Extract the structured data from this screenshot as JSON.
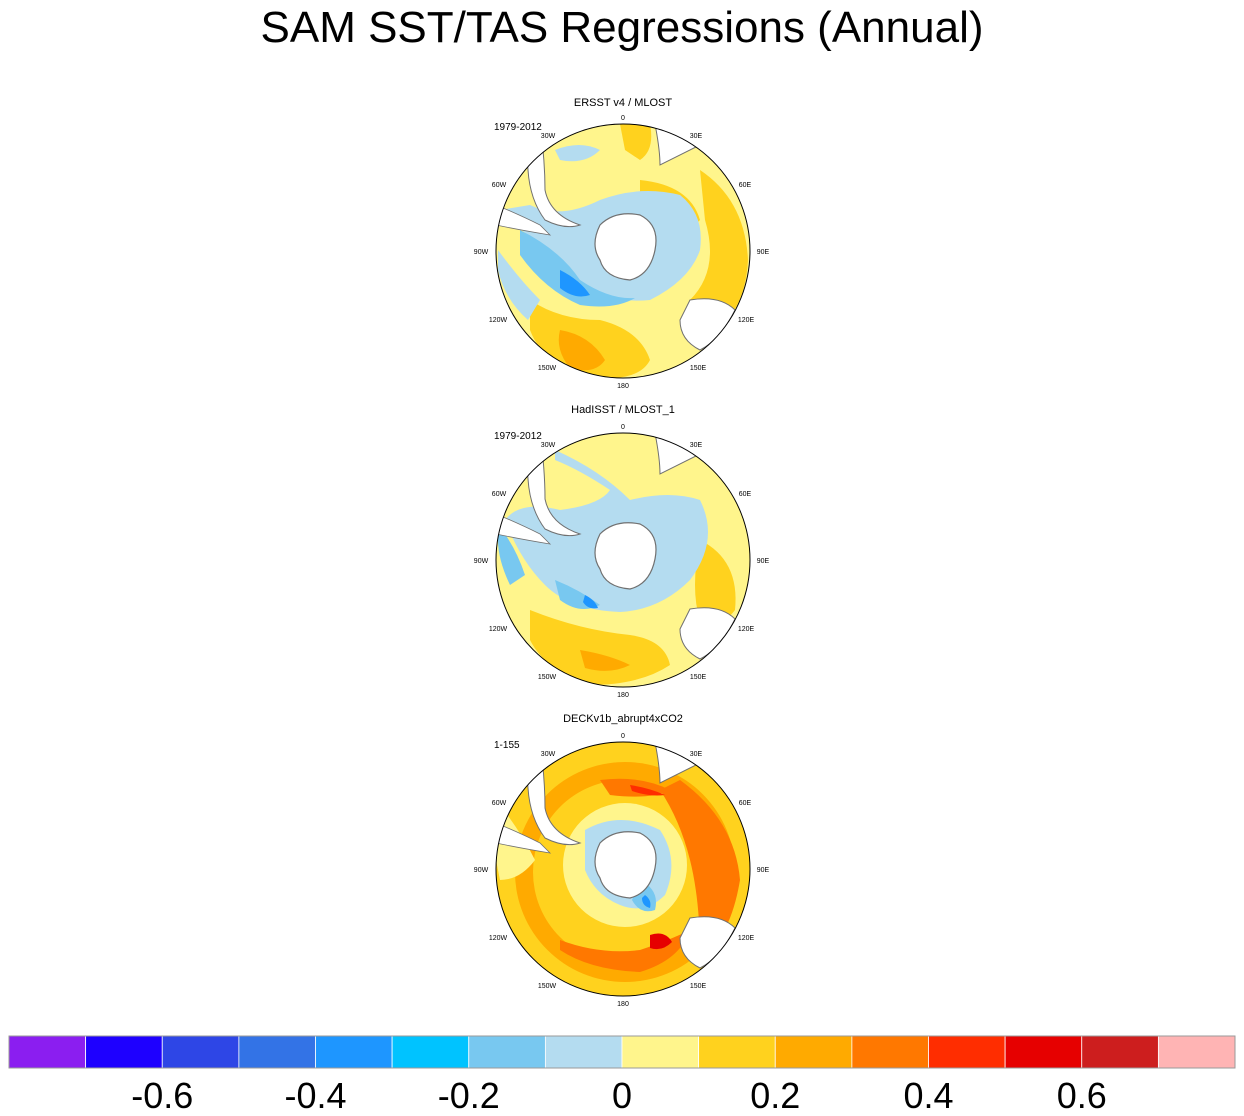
{
  "title": "SAM SST/TAS Regressions (Annual)",
  "chart_data": {
    "type": "polar-contour-map",
    "projection": "south-polar-stereographic",
    "panels": [
      {
        "title": "ERSST v4 / MLOST",
        "period": "1979-2012",
        "dominant_pattern": "warm Pacific/Atlantic mid-latitudes, cool ring near 50-60S with minimum near 100W"
      },
      {
        "title": "HadISST / MLOST_1",
        "period": "1979-2012",
        "dominant_pattern": "weak, patchy; slight cooling south of 50S, weak warming elsewhere"
      },
      {
        "title": "DECKv1b_abrupt4xCO2",
        "period": "1-155",
        "dominant_pattern": "strong warming ring at 40-55S peaking south of Australia/New Zealand, cooling near Antarctica"
      }
    ],
    "longitude_labels": [
      "0",
      "30E",
      "60E",
      "90E",
      "120E",
      "150E",
      "180",
      "150W",
      "120W",
      "90W",
      "60W",
      "30W"
    ],
    "colorbar": {
      "levels": [
        -0.7,
        -0.6,
        -0.5,
        -0.4,
        -0.3,
        -0.2,
        -0.1,
        0,
        0.1,
        0.2,
        0.3,
        0.4,
        0.5,
        0.6,
        0.7
      ],
      "colors": [
        "#8b1ef0",
        "#1e00ff",
        "#2e46e6",
        "#3373e6",
        "#1e96ff",
        "#00c3ff",
        "#78c8f0",
        "#b4dcf0",
        "#fff58c",
        "#ffd21e",
        "#ffaa00",
        "#ff7800",
        "#ff2d00",
        "#e60000",
        "#cd1e1e",
        "#ffb4b4"
      ],
      "tick_labels": [
        "-0.6",
        "-0.4",
        "-0.2",
        "0",
        "0.2",
        "0.4",
        "0.6"
      ],
      "tick_values": [
        -0.6,
        -0.4,
        -0.2,
        0,
        0.2,
        0.4,
        0.6
      ]
    }
  }
}
